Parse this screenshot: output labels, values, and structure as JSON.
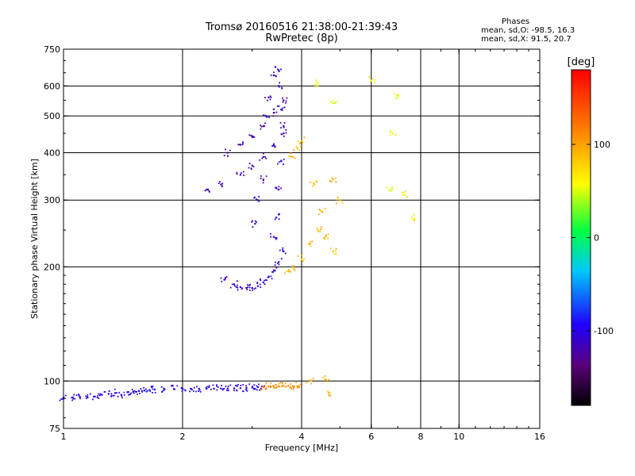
{
  "chart_data": {
    "type": "scatter",
    "title": "Tromsø 20160516 21:38:00-21:39:43",
    "subtitle": "RwPretec (8p)",
    "xlabel": "Frequency [MHz]",
    "ylabel": "Stationary phase Virtual Height [km]",
    "x_scale": "log",
    "y_scale": "log",
    "xlim": [
      1,
      16
    ],
    "ylim": [
      75,
      750
    ],
    "x_ticks": [
      1,
      2,
      4,
      6,
      8,
      10,
      16
    ],
    "x_tick_labels": [
      "1",
      "2",
      "4",
      "6",
      "8",
      "10",
      "16"
    ],
    "x_grid": [
      2,
      4,
      6,
      8,
      10
    ],
    "y_ticks": [
      75,
      100,
      200,
      300,
      400,
      500,
      600,
      750
    ],
    "y_tick_labels": [
      "75",
      "100",
      "200",
      "300",
      "400",
      "500",
      "600",
      "750"
    ],
    "y_grid": [
      100,
      200,
      300,
      400,
      500,
      600
    ],
    "grid": true,
    "stats": {
      "heading": "Phases",
      "line_o": "mean, sd,O:  -98.5, 16.3",
      "line_x": "mean, sd,X:  91.5, 20.7"
    },
    "colorbar": {
      "label": "[deg]",
      "range": [
        -180,
        180
      ],
      "ticks": [
        100,
        0,
        -100
      ],
      "tick_labels": [
        "100",
        "0",
        "-100"
      ],
      "colormap": "rainbow"
    },
    "series": [
      {
        "role": "E-layer trace (O-mode)",
        "phase_deg": -100,
        "points": [
          [
            1.0,
            90.5
          ],
          [
            1.05,
            90.5
          ],
          [
            1.1,
            90.8
          ],
          [
            1.15,
            90.6
          ],
          [
            1.2,
            91.0
          ],
          [
            1.25,
            92.0
          ],
          [
            1.3,
            92.5
          ],
          [
            1.35,
            93.0
          ],
          [
            1.4,
            92.0
          ],
          [
            1.45,
            93.5
          ],
          [
            1.5,
            93.8
          ],
          [
            1.55,
            94.2
          ],
          [
            1.6,
            94.5
          ],
          [
            1.65,
            94.8
          ],
          [
            1.7,
            95.0
          ],
          [
            1.8,
            95.2
          ],
          [
            1.9,
            95.3
          ],
          [
            2.0,
            95.4
          ],
          [
            2.1,
            95.4
          ],
          [
            2.2,
            95.5
          ],
          [
            2.3,
            95.5
          ],
          [
            2.4,
            95.5
          ],
          [
            2.5,
            95.6
          ],
          [
            2.6,
            95.6
          ],
          [
            2.7,
            95.7
          ],
          [
            2.8,
            95.8
          ],
          [
            2.9,
            96.0
          ],
          [
            3.0,
            96.2
          ],
          [
            3.1,
            96.4
          ],
          [
            3.2,
            96.6
          ]
        ]
      },
      {
        "role": "E-layer trace (X-mode)",
        "phase_deg": 110,
        "points": [
          [
            3.2,
            96.5
          ],
          [
            3.3,
            96.8
          ],
          [
            3.4,
            97.0
          ],
          [
            3.5,
            97.0
          ],
          [
            3.6,
            97.1
          ],
          [
            3.7,
            97.2
          ],
          [
            3.8,
            97.0
          ],
          [
            3.9,
            97.0
          ]
        ]
      },
      {
        "role": "Sporadic echoes near 100 km",
        "phase_deg": 90,
        "points": [
          [
            4.2,
            100.5
          ],
          [
            4.6,
            101.0
          ],
          [
            4.7,
            93.0
          ]
        ]
      },
      {
        "role": "F-layer lower branch (O-mode)",
        "phase_deg": -105,
        "points": [
          [
            2.55,
            185
          ],
          [
            2.7,
            180
          ],
          [
            2.8,
            177
          ],
          [
            2.9,
            176
          ],
          [
            3.0,
            176
          ],
          [
            3.1,
            178
          ],
          [
            3.2,
            182
          ],
          [
            3.3,
            188
          ],
          [
            3.4,
            196
          ],
          [
            3.5,
            206
          ],
          [
            3.6,
            220
          ]
        ]
      },
      {
        "role": "F-layer vertical traces (O-mode)",
        "phase_deg": -110,
        "points": [
          [
            3.05,
            260
          ],
          [
            3.1,
            300
          ],
          [
            3.2,
            340
          ],
          [
            3.25,
            500
          ],
          [
            3.3,
            560
          ],
          [
            3.4,
            640
          ],
          [
            3.5,
            660
          ],
          [
            3.5,
            600
          ],
          [
            3.55,
            520
          ],
          [
            3.6,
            450
          ],
          [
            3.55,
            380
          ],
          [
            3.5,
            320
          ],
          [
            3.45,
            270
          ],
          [
            3.4,
            240
          ]
        ]
      },
      {
        "role": "F-layer oblique branch 2.3-3.4 MHz",
        "phase_deg": -115,
        "points": [
          [
            2.3,
            320
          ],
          [
            2.5,
            330
          ],
          [
            2.8,
            350
          ],
          [
            3.0,
            370
          ],
          [
            3.2,
            390
          ],
          [
            3.4,
            420
          ],
          [
            3.6,
            470
          ]
        ]
      },
      {
        "role": "F-layer branch near 400 km",
        "phase_deg": -120,
        "points": [
          [
            2.6,
            400
          ],
          [
            2.8,
            420
          ],
          [
            3.0,
            440
          ],
          [
            3.2,
            470
          ],
          [
            3.4,
            510
          ],
          [
            3.6,
            550
          ]
        ]
      },
      {
        "role": "X-mode echoes 3.7-4.7 MHz",
        "phase_deg": 90,
        "points": [
          [
            3.7,
            195
          ],
          [
            3.8,
            200
          ],
          [
            4.0,
            210
          ],
          [
            4.2,
            230
          ],
          [
            4.4,
            250
          ],
          [
            4.6,
            240
          ],
          [
            4.8,
            220
          ],
          [
            3.8,
            390
          ],
          [
            3.9,
            410
          ],
          [
            4.0,
            430
          ],
          [
            4.3,
            330
          ],
          [
            4.5,
            280
          ],
          [
            4.8,
            340
          ],
          [
            5.0,
            300
          ]
        ]
      },
      {
        "role": "Scattered high-frequency echoes",
        "phase_deg": 60,
        "points": [
          [
            6.0,
            620
          ],
          [
            6.7,
            320
          ],
          [
            7.0,
            560
          ],
          [
            6.8,
            450
          ],
          [
            7.3,
            310
          ],
          [
            7.6,
            270
          ],
          [
            4.4,
            610
          ],
          [
            4.8,
            540
          ]
        ]
      }
    ]
  }
}
